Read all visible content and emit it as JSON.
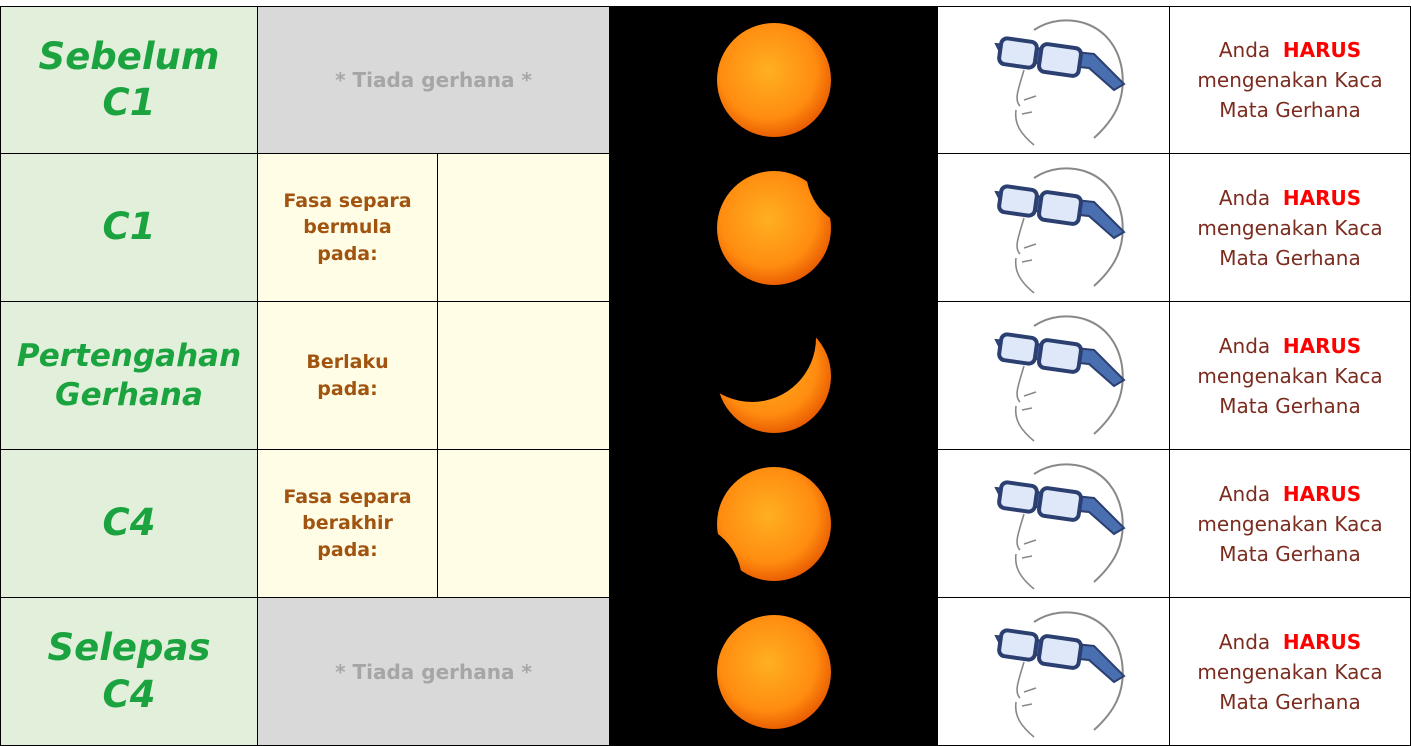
{
  "rows": [
    {
      "stage": [
        "Sebelum",
        "C1"
      ],
      "no_eclipse": "* Tiada gerhana *",
      "notice": {
        "pre": "Anda",
        "emphasis": "HARUS",
        "post": "mengenakan Kaca Mata Gerhana"
      }
    },
    {
      "stage": [
        "C1"
      ],
      "phase": "Fasa separa bermula pada:",
      "notice": {
        "pre": "Anda",
        "emphasis": "HARUS",
        "post": "mengenakan Kaca Mata Gerhana"
      }
    },
    {
      "stage": [
        "Pertengahan",
        "Gerhana"
      ],
      "phase": "Berlaku pada:",
      "notice": {
        "pre": "Anda",
        "emphasis": "HARUS",
        "post": "mengenakan Kaca Mata Gerhana"
      }
    },
    {
      "stage": [
        "C4"
      ],
      "phase": "Fasa separa berakhir pada:",
      "notice": {
        "pre": "Anda",
        "emphasis": "HARUS",
        "post": "mengenakan Kaca Mata Gerhana"
      }
    },
    {
      "stage": [
        "Selepas",
        "C4"
      ],
      "no_eclipse": "* Tiada gerhana *",
      "notice": {
        "pre": "Anda",
        "emphasis": "HARUS",
        "post": "mengenakan Kaca Mata Gerhana"
      }
    }
  ]
}
